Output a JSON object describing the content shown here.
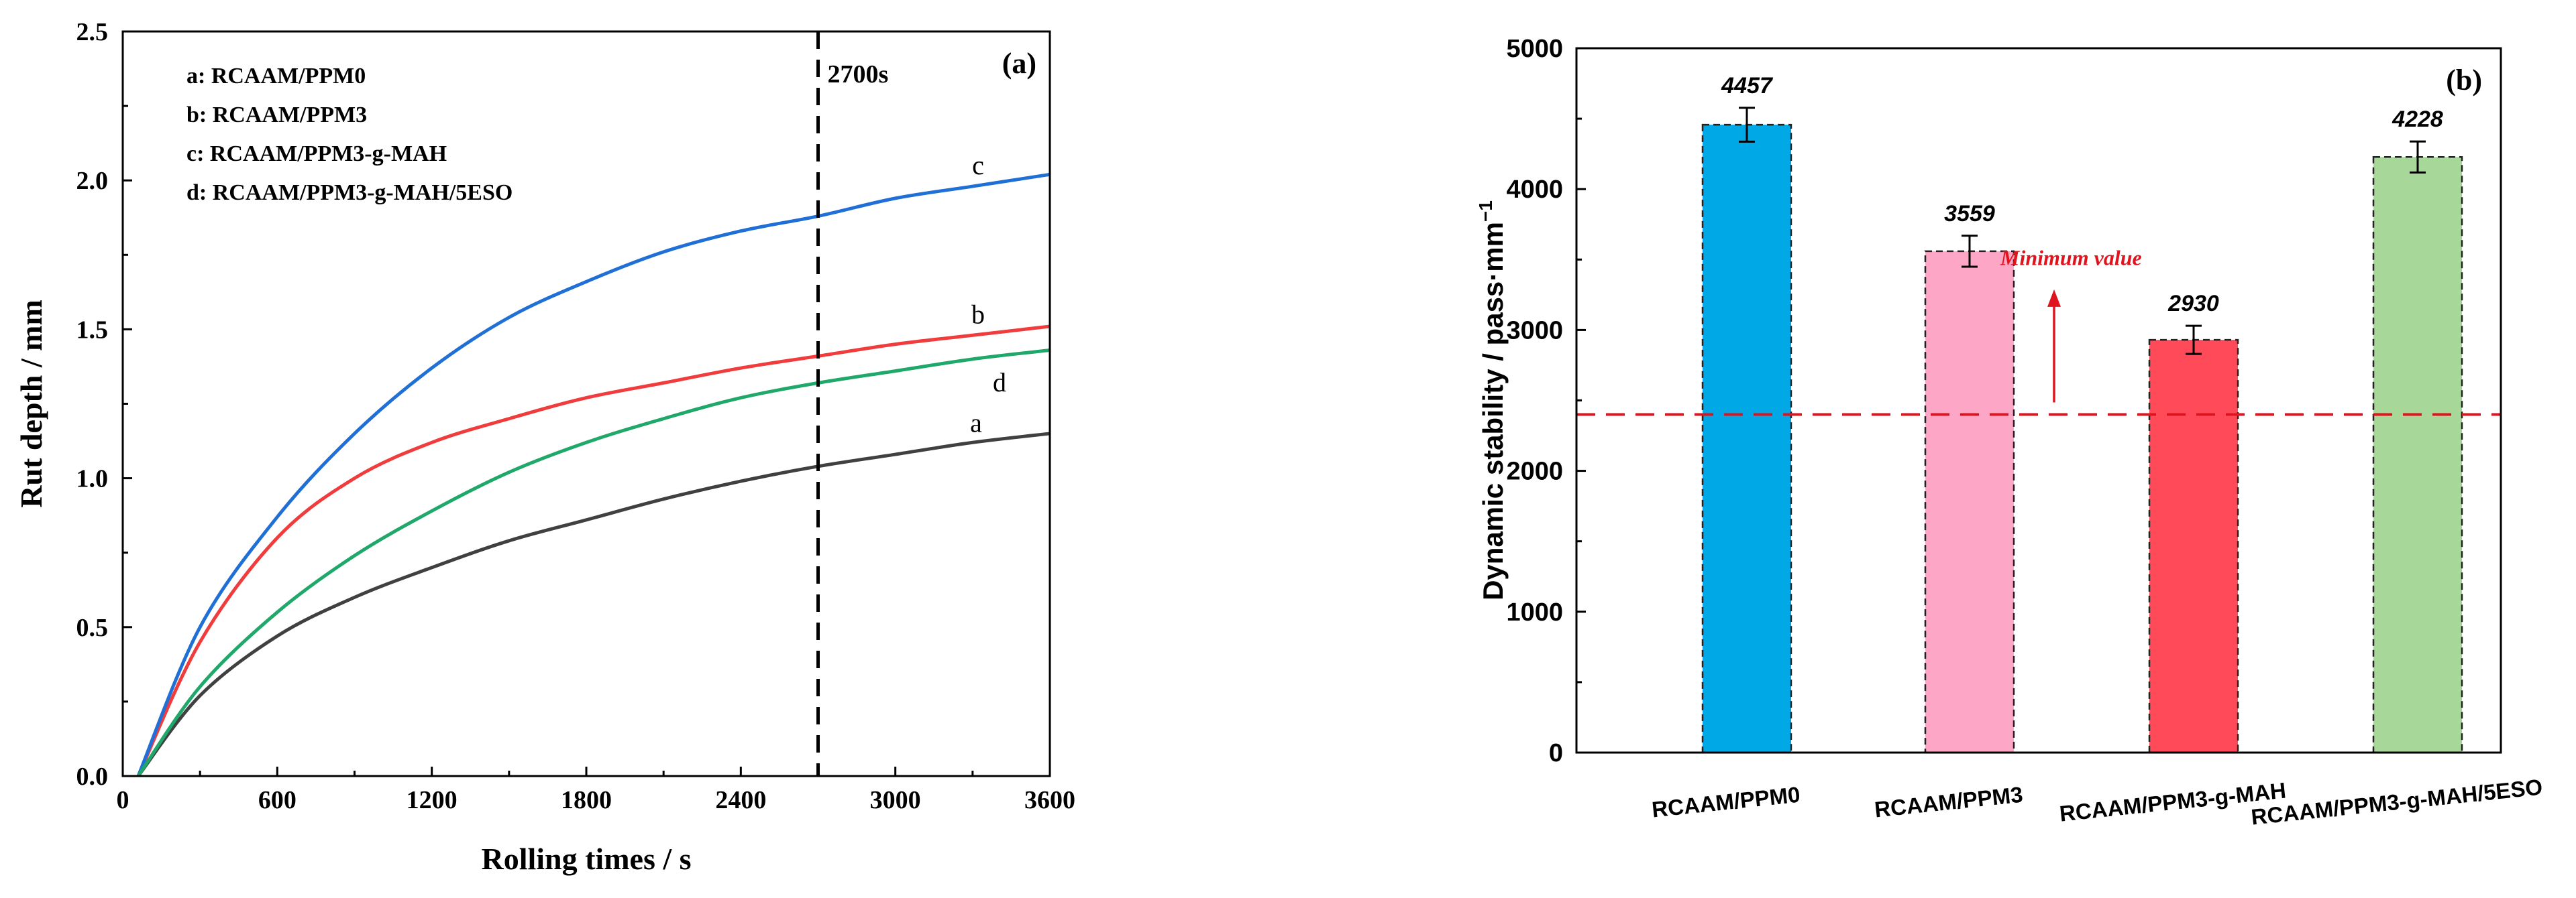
{
  "chart_data": [
    {
      "type": "line",
      "panel_label": "(a)",
      "xlabel": "Rolling times / s",
      "ylabel": "Rut depth / mm",
      "xlim": [
        0,
        3600
      ],
      "ylim": [
        0,
        2.5
      ],
      "x_ticks": [
        0,
        600,
        1200,
        1800,
        2400,
        3000,
        3600
      ],
      "x_tick_labels": [
        "0",
        "600",
        "1200",
        "1800",
        "2400",
        "3000",
        "3600"
      ],
      "y_ticks": [
        0,
        0.5,
        1.0,
        1.5,
        2.0,
        2.5
      ],
      "y_tick_labels": [
        "0.0",
        "0.5",
        "1.0",
        "1.5",
        "2.0",
        "2.5"
      ],
      "legend": [
        "a: RCAAM/PPM0",
        "b: RCAAM/PPM3",
        "c: RCAAM/PPM3-g-MAH",
        "d: RCAAM/PPM3-g-MAH/5ESO"
      ],
      "vline": {
        "x": 2700,
        "label": "2700s"
      },
      "series": [
        {
          "name": "a",
          "color": "#404040",
          "x": [
            60,
            300,
            600,
            900,
            1200,
            1500,
            1800,
            2100,
            2400,
            2700,
            3000,
            3300,
            3600
          ],
          "y": [
            0.0,
            0.27,
            0.47,
            0.6,
            0.7,
            0.79,
            0.86,
            0.93,
            0.99,
            1.04,
            1.08,
            1.12,
            1.15
          ]
        },
        {
          "name": "b",
          "color": "#f03c3c",
          "x": [
            60,
            300,
            600,
            900,
            1200,
            1500,
            1800,
            2100,
            2400,
            2700,
            3000,
            3300,
            3600
          ],
          "y": [
            0.0,
            0.45,
            0.8,
            1.0,
            1.12,
            1.2,
            1.27,
            1.32,
            1.37,
            1.41,
            1.45,
            1.48,
            1.51
          ]
        },
        {
          "name": "c",
          "color": "#1f6fd6",
          "x": [
            60,
            300,
            600,
            900,
            1200,
            1500,
            1800,
            2100,
            2400,
            2700,
            3000,
            3300,
            3600
          ],
          "y": [
            0.0,
            0.5,
            0.87,
            1.15,
            1.37,
            1.54,
            1.66,
            1.76,
            1.83,
            1.88,
            1.94,
            1.98,
            2.02
          ]
        },
        {
          "name": "d",
          "color": "#20a86a",
          "x": [
            60,
            300,
            600,
            900,
            1200,
            1500,
            1800,
            2100,
            2400,
            2700,
            3000,
            3300,
            3600
          ],
          "y": [
            0.0,
            0.3,
            0.55,
            0.74,
            0.89,
            1.02,
            1.12,
            1.2,
            1.27,
            1.32,
            1.36,
            1.4,
            1.43
          ]
        }
      ]
    },
    {
      "type": "bar",
      "panel_label": "(b)",
      "xlabel": "",
      "ylabel": "Dynamic stability / pass·mm",
      "ylabel_sup": "−1",
      "ylim": [
        0,
        5000
      ],
      "y_ticks": [
        0,
        1000,
        2000,
        3000,
        4000,
        5000
      ],
      "y_tick_labels": [
        "0",
        "1000",
        "2000",
        "3000",
        "4000",
        "5000"
      ],
      "categories": [
        "RCAAM/PPM0",
        "RCAAM/PPM3",
        "RCAAM/PPM3-g-MAH",
        "RCAAM/PPM3-g-MAH/5ESO"
      ],
      "values": [
        4457,
        3559,
        2930,
        4228
      ],
      "value_labels": [
        "4457",
        "3559",
        "2930",
        "4228"
      ],
      "errors": [
        120,
        110,
        100,
        110
      ],
      "colors": [
        "#00a9e6",
        "#fda6c5",
        "#ff4a5a",
        "#a8d79a"
      ],
      "threshold": {
        "value": 2400,
        "label": "Minimum value",
        "color": "#e0141e"
      }
    }
  ]
}
